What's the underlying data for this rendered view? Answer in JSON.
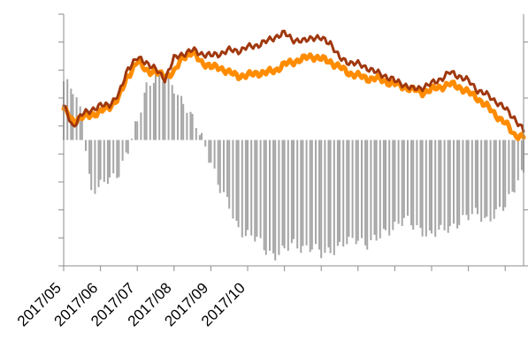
{
  "chart_data": {
    "type": "line",
    "title": "",
    "xlabel": "",
    "ylabel": "",
    "x_tick_labels": [
      "2017/05",
      "2017/06",
      "2017/07",
      "2017/08",
      "2017/09",
      "2017/10"
    ],
    "x_range": [
      0,
      250
    ],
    "x_tick_positions": [
      0,
      20,
      40,
      60,
      80,
      100,
      120,
      140,
      160,
      180,
      200,
      220,
      240
    ],
    "left_axis": {
      "ylim": [
        -9,
        9
      ],
      "ticks": [
        -9,
        -7,
        -5,
        -3,
        -1,
        1,
        3,
        5,
        7,
        9
      ]
    },
    "right_axis": {
      "ylim": [
        -9,
        9
      ],
      "ticks": [
        -9,
        -5,
        -1,
        3,
        7
      ]
    },
    "grid": false,
    "legend": "none",
    "series": [
      {
        "kind": "bar",
        "color": "#a6a6a6",
        "axis": "left",
        "x": [
          0,
          5,
          10,
          15,
          20,
          25,
          30,
          35,
          40,
          45,
          50,
          55,
          60,
          65,
          70,
          75,
          80,
          85,
          90,
          95,
          100,
          105,
          110,
          115,
          120,
          125,
          130,
          135,
          140,
          145,
          150,
          155,
          160,
          165,
          170,
          175,
          180,
          185,
          190,
          195,
          200,
          205,
          210,
          215,
          220,
          225,
          230,
          235,
          240,
          245,
          250
        ],
        "values": [
          4.2,
          3.4,
          1.8,
          -3.6,
          -3.4,
          -2.8,
          -2.2,
          -0.8,
          1.2,
          4.0,
          4.6,
          4.2,
          3.8,
          2.8,
          1.4,
          0.2,
          -1.4,
          -3.6,
          -4.8,
          -6.2,
          -6.8,
          -7.2,
          -7.8,
          -8.2,
          -8.0,
          -7.4,
          -7.6,
          -7.8,
          -8.2,
          -7.8,
          -7.6,
          -7.4,
          -7.0,
          -7.4,
          -7.2,
          -6.6,
          -6.0,
          -5.8,
          -6.2,
          -6.4,
          -6.8,
          -6.6,
          -6.2,
          -5.8,
          -5.6,
          -5.2,
          -5.6,
          -5.4,
          -4.8,
          -3.2,
          -2.2
        ]
      },
      {
        "kind": "line",
        "color": "#ff8c00",
        "axis": "left",
        "x": [
          0,
          5,
          10,
          15,
          20,
          25,
          30,
          35,
          40,
          45,
          50,
          55,
          60,
          65,
          70,
          75,
          80,
          85,
          90,
          95,
          100,
          105,
          110,
          115,
          120,
          125,
          130,
          135,
          140,
          145,
          150,
          155,
          160,
          165,
          170,
          175,
          180,
          185,
          190,
          195,
          200,
          205,
          210,
          215,
          220,
          225,
          230,
          235,
          240,
          245,
          250
        ],
        "values": [
          2.2,
          1.4,
          1.6,
          1.8,
          2.0,
          2.4,
          3.0,
          4.6,
          5.6,
          5.0,
          4.8,
          4.6,
          4.8,
          6.0,
          6.2,
          5.6,
          5.2,
          5.2,
          4.8,
          4.6,
          4.6,
          4.8,
          4.8,
          5.0,
          5.4,
          5.6,
          5.8,
          6.0,
          5.8,
          5.6,
          5.2,
          4.8,
          4.6,
          4.4,
          4.4,
          4.2,
          4.0,
          3.8,
          3.6,
          3.4,
          3.6,
          3.8,
          4.0,
          3.8,
          3.4,
          3.0,
          2.4,
          1.8,
          1.2,
          0.4,
          0.2
        ]
      },
      {
        "kind": "line",
        "color": "#a0380e",
        "axis": "left",
        "x": [
          0,
          5,
          10,
          15,
          20,
          25,
          30,
          35,
          40,
          45,
          50,
          55,
          60,
          65,
          70,
          75,
          80,
          85,
          90,
          95,
          100,
          105,
          110,
          115,
          120,
          125,
          130,
          135,
          140,
          145,
          150,
          155,
          160,
          165,
          170,
          175,
          180,
          185,
          190,
          195,
          200,
          205,
          210,
          215,
          220,
          225,
          230,
          235,
          240,
          245,
          250
        ],
        "values": [
          2.4,
          1.0,
          1.8,
          2.2,
          2.4,
          2.6,
          3.2,
          5.2,
          5.8,
          5.6,
          5.0,
          4.4,
          5.8,
          6.2,
          6.4,
          6.2,
          6.0,
          6.2,
          6.4,
          6.4,
          6.6,
          6.8,
          7.0,
          7.4,
          7.6,
          7.2,
          7.0,
          7.4,
          7.2,
          7.0,
          5.8,
          5.6,
          5.4,
          5.2,
          4.8,
          4.6,
          4.2,
          4.0,
          3.6,
          3.8,
          4.0,
          4.4,
          4.8,
          4.6,
          4.2,
          3.6,
          3.2,
          2.8,
          2.2,
          1.6,
          0.6
        ]
      }
    ]
  }
}
